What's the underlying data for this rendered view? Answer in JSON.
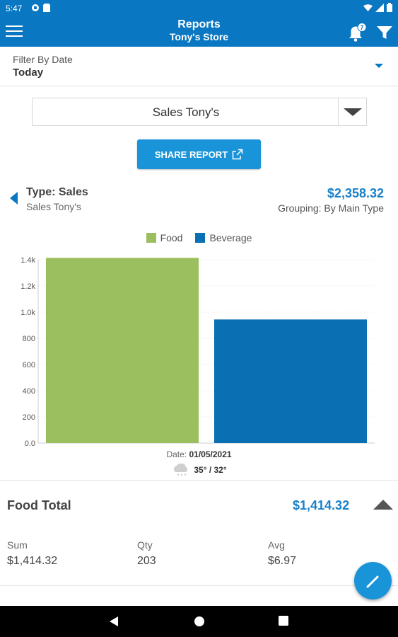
{
  "status_bar": {
    "time": "5:47"
  },
  "app_bar": {
    "title": "Reports",
    "subtitle": "Tony's Store",
    "notification_count": "7"
  },
  "filter": {
    "label": "Filter By Date",
    "value": "Today"
  },
  "report_select": {
    "value": "Sales Tony's"
  },
  "share_button": {
    "label": "SHARE REPORT"
  },
  "report_header": {
    "type": "Type: Sales",
    "name": "Sales Tony's",
    "total": "$2,358.32",
    "grouping": "Grouping: By Main Type"
  },
  "chart_data": {
    "type": "bar",
    "categories": [
      "Food",
      "Beverage"
    ],
    "values": [
      1414.32,
      944.0
    ],
    "colors": [
      "#9bbf5e",
      "#0a6fb3"
    ],
    "yticks": [
      "0.0",
      "200",
      "400",
      "600",
      "800",
      "1.0k",
      "1.2k",
      "1.4k"
    ],
    "ylim": [
      0,
      1400
    ],
    "legend": [
      {
        "name": "Food",
        "color": "#9bbf5e"
      },
      {
        "name": "Beverage",
        "color": "#0a6fb3"
      }
    ],
    "legend_position": "top-center",
    "grid": true
  },
  "date_info": {
    "label": "Date:",
    "value": "01/05/2021"
  },
  "weather": {
    "icon": "snow-cloud-icon",
    "temps": "35° / 32°"
  },
  "food_total": {
    "label": "Food Total",
    "amount": "$1,414.32"
  },
  "stats": [
    {
      "key": "Sum",
      "value": "$1,414.32"
    },
    {
      "key": "Qty",
      "value": "203"
    },
    {
      "key": "Avg",
      "value": "$6.97"
    }
  ],
  "accent_color": "#0a77c2"
}
